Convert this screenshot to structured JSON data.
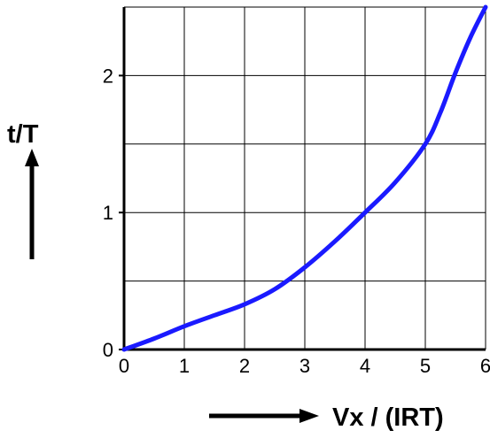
{
  "chart_data": {
    "type": "line",
    "title": "",
    "xlabel": "Vx / (IRT)",
    "ylabel": "t/T",
    "xlim": [
      0,
      6
    ],
    "ylim": [
      0,
      2.5
    ],
    "grid": true,
    "x_gridlines": [
      0,
      1,
      2,
      3,
      4,
      5,
      6
    ],
    "y_gridlines": [
      0,
      0.5,
      1,
      1.5,
      2,
      2.5
    ],
    "x_ticks": [
      "0",
      "1",
      "2",
      "3",
      "4",
      "5",
      "6"
    ],
    "y_ticks": [
      "0",
      "1",
      "2"
    ],
    "series": [
      {
        "color": "#1a1aff",
        "x": [
          0,
          0.5,
          1,
          1.5,
          2,
          2.5,
          3,
          3.5,
          4,
          4.5,
          5,
          5.25,
          5.5,
          5.75,
          6
        ],
        "y": [
          0,
          0.08,
          0.17,
          0.25,
          0.33,
          0.44,
          0.6,
          0.79,
          1.0,
          1.22,
          1.5,
          1.73,
          2.02,
          2.28,
          2.5
        ]
      }
    ]
  }
}
